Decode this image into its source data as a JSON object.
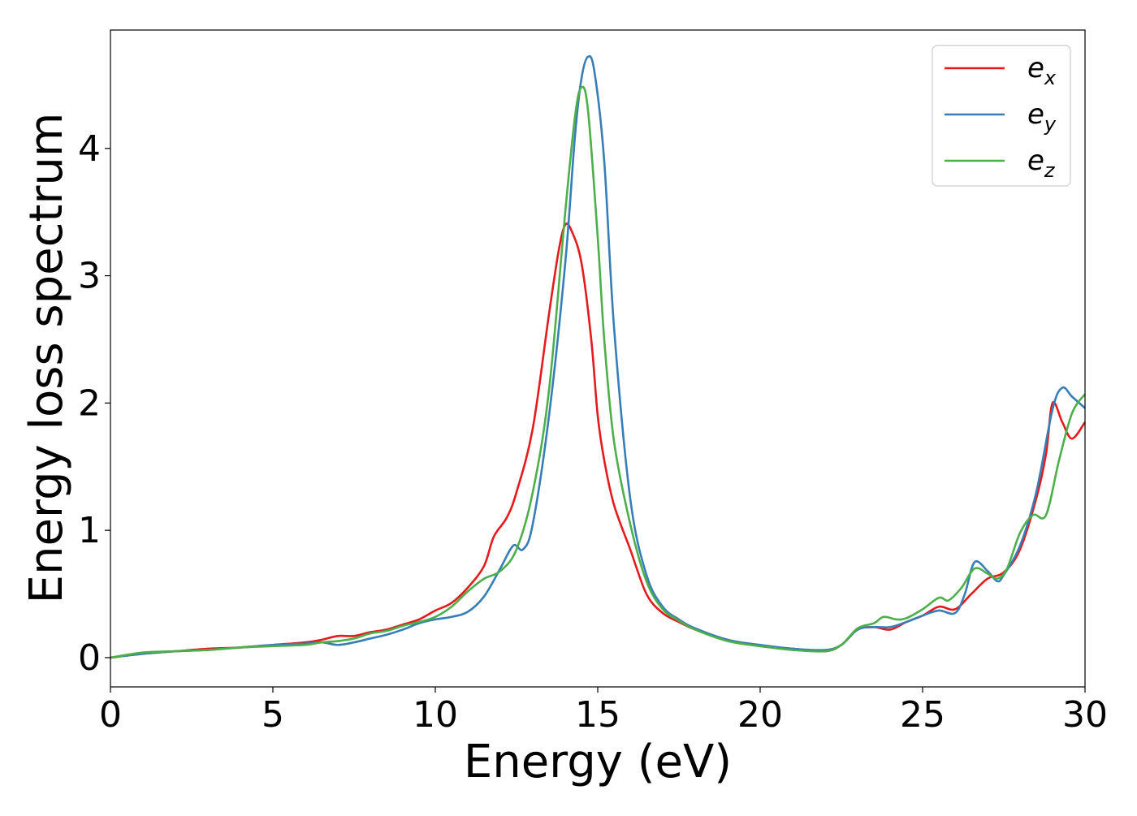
{
  "chart_data": {
    "type": "line",
    "title": "",
    "xlabel": "Energy (eV)",
    "ylabel": "Energy loss spectrum",
    "xlim": [
      0,
      30
    ],
    "ylim": [
      -0.23,
      4.93
    ],
    "xticks": [
      0,
      5,
      10,
      15,
      20,
      25,
      30
    ],
    "xtick_labels": [
      "0",
      "5",
      "10",
      "15",
      "20",
      "25",
      "30"
    ],
    "yticks": [
      0,
      1,
      2,
      3,
      4
    ],
    "ytick_labels": [
      "0",
      "1",
      "2",
      "3",
      "4"
    ],
    "grid": false,
    "legend_position": "top-right",
    "series": [
      {
        "name": "e_x",
        "label_base": "e",
        "label_sub": "x",
        "color": "#e41a1c",
        "x": [
          0,
          1,
          2,
          3,
          4,
          5,
          6,
          6.5,
          7,
          7.5,
          8,
          8.5,
          9,
          9.5,
          10,
          10.5,
          11,
          11.5,
          11.8,
          12.2,
          12.5,
          13,
          13.5,
          13.8,
          14,
          14.2,
          14.5,
          14.8,
          15,
          15.2,
          15.5,
          16,
          16.5,
          17,
          17.5,
          18,
          19,
          20,
          21,
          22,
          22.5,
          23,
          23.5,
          24,
          24.5,
          25,
          25.5,
          26,
          26.5,
          27,
          27.5,
          28,
          28.5,
          28.8,
          29,
          29.3,
          29.6,
          30
        ],
        "y": [
          0,
          0.03,
          0.05,
          0.07,
          0.08,
          0.1,
          0.12,
          0.14,
          0.17,
          0.17,
          0.2,
          0.22,
          0.26,
          0.3,
          0.37,
          0.43,
          0.55,
          0.72,
          0.95,
          1.1,
          1.3,
          1.8,
          2.7,
          3.2,
          3.4,
          3.35,
          3.1,
          2.5,
          1.9,
          1.55,
          1.2,
          0.85,
          0.5,
          0.35,
          0.28,
          0.22,
          0.14,
          0.09,
          0.07,
          0.05,
          0.1,
          0.22,
          0.24,
          0.22,
          0.28,
          0.33,
          0.4,
          0.38,
          0.5,
          0.62,
          0.67,
          0.85,
          1.25,
          1.6,
          2.0,
          1.85,
          1.72,
          1.85
        ]
      },
      {
        "name": "e_y",
        "label_base": "e",
        "label_sub": "y",
        "color": "#377eb8",
        "x": [
          0,
          1,
          2,
          3,
          4,
          5,
          6,
          6.5,
          7,
          7.5,
          8,
          8.5,
          9,
          9.5,
          10,
          10.5,
          11,
          11.5,
          12,
          12.4,
          12.7,
          13,
          13.5,
          14,
          14.3,
          14.5,
          14.7,
          14.9,
          15.2,
          15.5,
          16,
          16.5,
          17,
          17.5,
          18,
          19,
          20,
          21,
          22,
          22.5,
          23,
          23.5,
          24,
          24.5,
          25,
          25.5,
          26,
          26.3,
          26.6,
          27,
          27.3,
          27.5,
          28,
          28.5,
          29,
          29.3,
          29.6,
          30
        ],
        "y": [
          0,
          0.03,
          0.05,
          0.06,
          0.08,
          0.1,
          0.11,
          0.12,
          0.1,
          0.12,
          0.15,
          0.18,
          0.22,
          0.27,
          0.3,
          0.32,
          0.36,
          0.48,
          0.7,
          0.88,
          0.85,
          1.05,
          1.9,
          3.1,
          4.1,
          4.55,
          4.72,
          4.6,
          3.9,
          2.6,
          1.25,
          0.65,
          0.4,
          0.3,
          0.23,
          0.14,
          0.1,
          0.07,
          0.06,
          0.1,
          0.22,
          0.24,
          0.24,
          0.28,
          0.33,
          0.37,
          0.35,
          0.5,
          0.75,
          0.68,
          0.6,
          0.65,
          0.88,
          1.3,
          1.95,
          2.12,
          2.05,
          1.96
        ]
      },
      {
        "name": "e_z",
        "label_base": "e",
        "label_sub": "z",
        "color": "#4daf4a",
        "x": [
          0,
          1,
          2,
          3,
          4,
          5,
          6,
          6.5,
          7,
          7.5,
          8,
          8.5,
          9,
          9.5,
          10,
          10.5,
          11,
          11.5,
          12,
          12.5,
          13,
          13.5,
          14,
          14.3,
          14.5,
          14.7,
          15,
          15.2,
          15.5,
          16,
          16.5,
          17,
          17.5,
          18,
          19,
          20,
          21,
          22,
          22.5,
          23,
          23.5,
          23.8,
          24.2,
          24.5,
          25,
          25.5,
          25.8,
          26.2,
          26.6,
          27,
          27.3,
          27.6,
          28,
          28.4,
          28.8,
          29.2,
          29.6,
          30
        ],
        "y": [
          0,
          0.04,
          0.05,
          0.06,
          0.08,
          0.09,
          0.1,
          0.12,
          0.13,
          0.15,
          0.19,
          0.21,
          0.25,
          0.28,
          0.32,
          0.4,
          0.52,
          0.62,
          0.68,
          0.85,
          1.3,
          2.1,
          3.5,
          4.25,
          4.48,
          4.3,
          3.3,
          2.5,
          1.7,
          1.05,
          0.6,
          0.38,
          0.29,
          0.22,
          0.13,
          0.09,
          0.06,
          0.05,
          0.1,
          0.23,
          0.27,
          0.32,
          0.3,
          0.31,
          0.38,
          0.47,
          0.45,
          0.55,
          0.7,
          0.66,
          0.62,
          0.7,
          0.98,
          1.12,
          1.12,
          1.55,
          1.92,
          2.07
        ]
      }
    ]
  }
}
